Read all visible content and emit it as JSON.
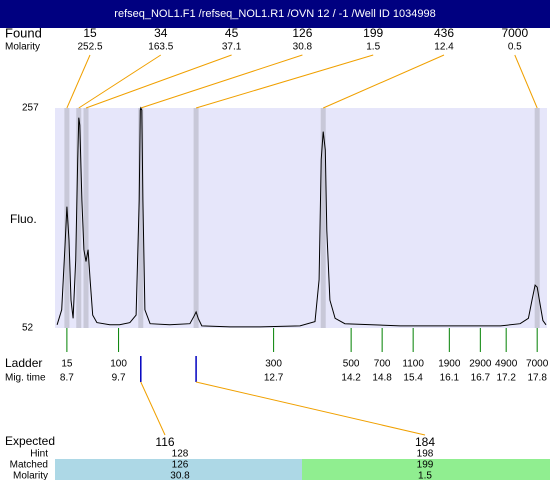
{
  "header": {
    "title": "refseq_NOL1.F1 /refseq_NOL1.R1 /OVN 12 / -1 /Well ID 1034998"
  },
  "found": {
    "label": "Found",
    "sublabel": "Molarity",
    "peaks": [
      {
        "size": 15,
        "molarity": 252.5,
        "time": 8.7
      },
      {
        "size": 34,
        "molarity": 163.5,
        "time": 8.93
      },
      {
        "size": 45,
        "molarity": 37.1,
        "time": 9.07
      },
      {
        "size": 126,
        "molarity": 30.8,
        "time": 10.13
      },
      {
        "size": 199,
        "molarity": 1.5,
        "time": 11.2
      },
      {
        "size": 436,
        "molarity": 12.4,
        "time": 13.66
      },
      {
        "size": 7000,
        "molarity": 0.5,
        "time": 17.8
      }
    ]
  },
  "plot": {
    "ylabel": "Fluo.",
    "ylim": [
      52,
      257
    ],
    "yticks": [
      257,
      52
    ],
    "xlim": [
      8.47,
      17.99
    ],
    "trace": {
      "x": [
        8.51,
        8.6,
        8.66,
        8.7,
        8.74,
        8.78,
        8.82,
        8.87,
        8.91,
        8.93,
        8.95,
        8.99,
        9.03,
        9.07,
        9.11,
        9.15,
        9.2,
        9.28,
        9.53,
        9.72,
        9.92,
        10.04,
        10.1,
        10.12,
        10.13,
        10.15,
        10.17,
        10.21,
        10.31,
        10.69,
        11.08,
        11.16,
        11.2,
        11.24,
        11.31,
        11.86,
        12.44,
        13.21,
        13.5,
        13.58,
        13.62,
        13.66,
        13.7,
        13.73,
        13.79,
        13.89,
        14.08,
        15.15,
        16.12,
        17.09,
        17.47,
        17.63,
        17.7,
        17.76,
        17.8,
        17.86,
        17.91,
        17.97
      ],
      "y": [
        55,
        69,
        125,
        165,
        134,
        78,
        61,
        115,
        209,
        248,
        241,
        171,
        125,
        114,
        125,
        97,
        64,
        57,
        55,
        55,
        57,
        64,
        171,
        255,
        257,
        255,
        171,
        69,
        56,
        55,
        56,
        63,
        67,
        61,
        54,
        53,
        53,
        54,
        58,
        97,
        209,
        235,
        218,
        143,
        78,
        61,
        56,
        54,
        54,
        54,
        56,
        61,
        78,
        92,
        90,
        73,
        59,
        55
      ]
    }
  },
  "ladder": {
    "label": "Ladder",
    "sublabel": "Mig. time",
    "sizes": [
      15,
      100,
      300,
      500,
      700,
      1100,
      1900,
      2900,
      4900,
      7000
    ],
    "times": [
      8.7,
      9.7,
      12.7,
      14.2,
      14.8,
      15.4,
      16.1,
      16.7,
      17.2,
      17.8
    ]
  },
  "expected": {
    "labels": [
      "Expected",
      "Hint",
      "Matched",
      "Molarity"
    ],
    "columns": [
      {
        "expected": 116,
        "hint": 128,
        "matched": 126,
        "molarity": 30.8,
        "time": 10.13
      },
      {
        "expected": 184,
        "hint": 198,
        "matched": 199,
        "molarity": 1.5,
        "time": 11.2
      }
    ]
  }
}
